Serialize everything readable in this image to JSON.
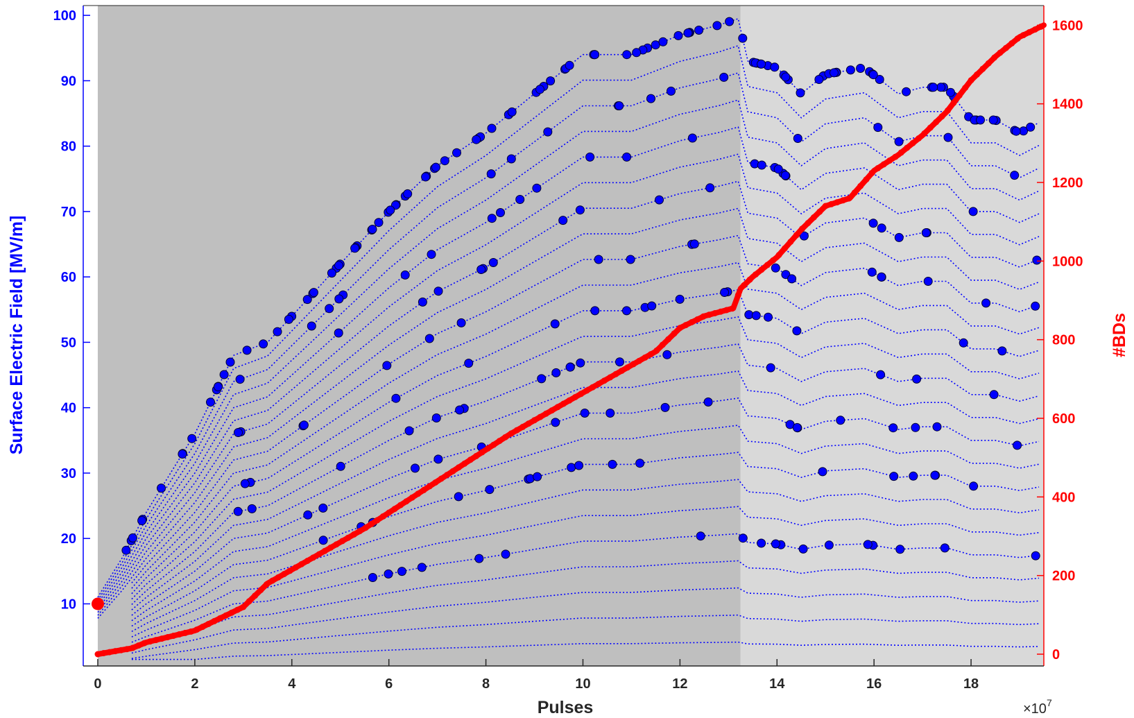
{
  "chart_data": {
    "type": "scatter",
    "title": "",
    "xlabel": "Pulses",
    "x_exponent_label": "×10",
    "x_exponent_power": "7",
    "ylabel_left": "Surface Electric Field [MV/m]",
    "ylabel_right": "#BDs",
    "xlim": [
      -0.3,
      19.5
    ],
    "ylim_left": [
      0.5,
      101.5
    ],
    "ylim_right": [
      -30,
      1650
    ],
    "x_ticks": [
      0,
      2,
      4,
      6,
      8,
      10,
      12,
      14,
      16,
      18
    ],
    "x_tick_labels": [
      "0",
      "2",
      "4",
      "6",
      "8",
      "10",
      "12",
      "14",
      "16",
      "18"
    ],
    "y_left_ticks": [
      10,
      20,
      30,
      40,
      50,
      60,
      70,
      80,
      90,
      100
    ],
    "y_left_tick_labels": [
      "10",
      "20",
      "30",
      "40",
      "50",
      "60",
      "70",
      "80",
      "90",
      "100"
    ],
    "y_right_ticks": [
      0,
      200,
      400,
      600,
      800,
      1000,
      1200,
      1400,
      1600
    ],
    "y_right_tick_labels": [
      "0",
      "200",
      "400",
      "600",
      "800",
      "1000",
      "1200",
      "1400",
      "1600"
    ],
    "regions": [
      {
        "x": [
          0,
          13.25
        ],
        "color": "#bfbfbf"
      },
      {
        "x": [
          13.25,
          19.5
        ],
        "color": "#d9d9d9"
      }
    ],
    "colors": {
      "field": "#0000ff",
      "field_marker": "#0000aa",
      "bds": "#ff0000"
    },
    "field_series": {
      "name": "Surface Electric Field",
      "axis": "left",
      "cell_fractions": [
        0.2,
        0.4,
        0.6,
        0.8,
        1.0
      ],
      "num_cells": 24,
      "envelope_x": [
        0,
        0.5,
        1,
        2,
        2.8,
        3.5,
        4.5,
        6,
        7,
        8,
        9,
        10,
        11,
        12,
        12.8,
        13.2,
        13.4,
        14,
        14.5,
        15,
        15.8,
        16.5,
        17,
        17.5,
        18,
        18.5,
        19,
        19.5
      ],
      "envelope_y": [
        11,
        17,
        24,
        36,
        48,
        50,
        58,
        70,
        77,
        82,
        88,
        94,
        94,
        97,
        98.5,
        99.5,
        93,
        92,
        88,
        91,
        92,
        88,
        89,
        89,
        84,
        84,
        82,
        84
      ]
    },
    "bd_series": {
      "name": "#BDs",
      "axis": "right",
      "x": [
        0,
        0.7,
        1,
        2,
        3,
        3.5,
        4.5,
        5.5,
        6.5,
        7.5,
        8.5,
        9.5,
        10.5,
        11.5,
        12,
        12.5,
        13.1,
        13.25,
        13.5,
        14,
        14.5,
        15,
        15.5,
        16,
        16.5,
        17,
        17.5,
        18,
        18.5,
        19,
        19.5
      ],
      "y": [
        0,
        15,
        30,
        60,
        120,
        180,
        250,
        320,
        400,
        480,
        560,
        630,
        700,
        770,
        830,
        860,
        880,
        930,
        960,
        1010,
        1080,
        1140,
        1160,
        1230,
        1270,
        1320,
        1380,
        1460,
        1520,
        1570,
        1600
      ]
    },
    "marker_start": {
      "x": 0,
      "y": 10
    }
  }
}
